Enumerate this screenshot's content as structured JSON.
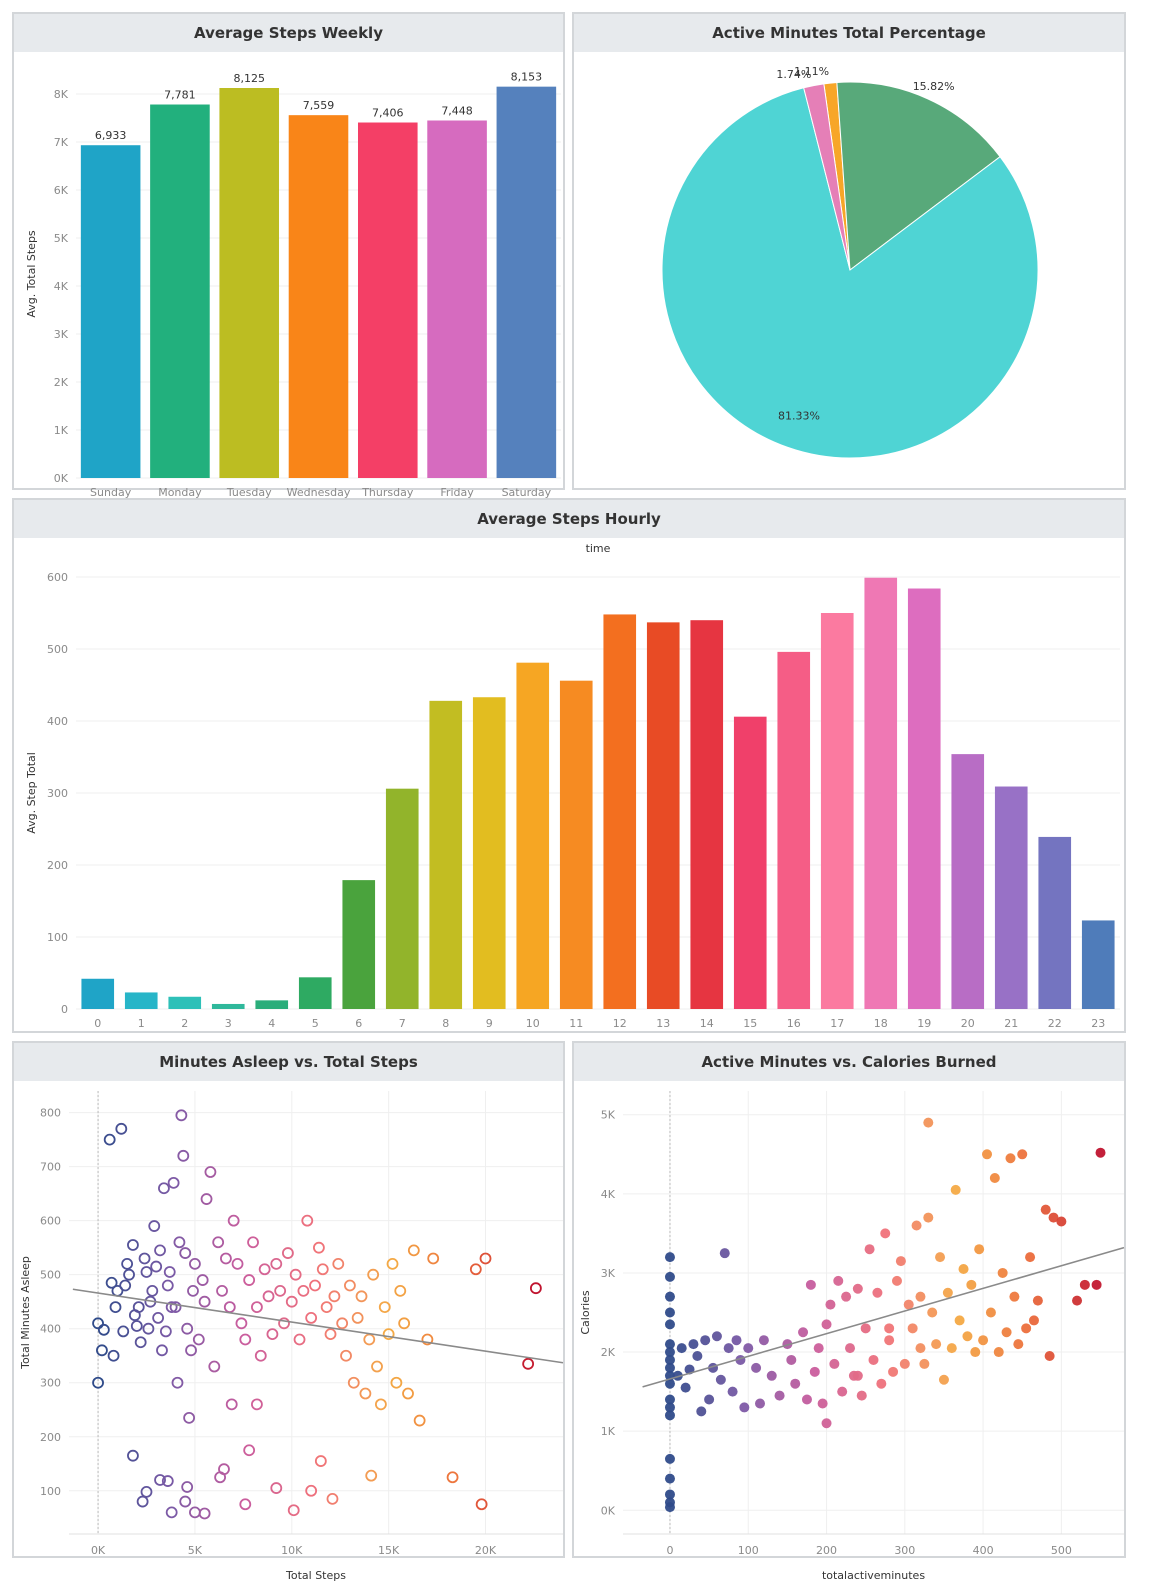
{
  "panels": {
    "weekly_title": "Average Steps Weekly",
    "pie_title": "Active Minutes Total Percentage",
    "hourly_title": "Average Steps Hourly",
    "sleep_title": "Minutes Asleep vs. Total Steps",
    "calories_title": "Active Minutes vs. Calories Burned"
  },
  "chart_data": [
    {
      "id": "weekly",
      "type": "bar",
      "title": "Average Steps Weekly",
      "xlabel": "",
      "ylabel": "Avg. Total Steps",
      "ylim": [
        0,
        8500
      ],
      "yticks": [
        0,
        1000,
        2000,
        3000,
        4000,
        5000,
        6000,
        7000,
        8000
      ],
      "ytick_labels": [
        "0K",
        "1K",
        "2K",
        "3K",
        "4K",
        "5K",
        "6K",
        "7K",
        "8K"
      ],
      "categories": [
        "Sunday",
        "Monday",
        "Tuesday",
        "Wednesday",
        "Thursday",
        "Friday",
        "Saturday"
      ],
      "values": [
        6933,
        7781,
        8125,
        7559,
        7406,
        7448,
        8153
      ],
      "value_labels": [
        "6,933",
        "7,781",
        "8,125",
        "7,559",
        "7,406",
        "7,448",
        "8,153"
      ],
      "colors": [
        "#1fa4c7",
        "#22b07d",
        "#bcbd22",
        "#f98518",
        "#f43f66",
        "#d66bbf",
        "#5581bd"
      ]
    },
    {
      "id": "pie",
      "type": "pie",
      "title": "Active Minutes Total Percentage",
      "values": [
        1.11,
        15.82,
        81.33,
        1.74
      ],
      "labels": [
        "1.11%",
        "15.82%",
        "81.33%",
        "1.74%"
      ],
      "colors": [
        "#f7a628",
        "#58a97a",
        "#4fd4d4",
        "#e57fb7"
      ]
    },
    {
      "id": "hourly",
      "type": "bar",
      "title": "Average Steps Hourly",
      "xlabel": "time",
      "ylabel": "Avg. Step Total",
      "ylim": [
        0,
        600
      ],
      "yticks": [
        0,
        100,
        200,
        300,
        400,
        500,
        600
      ],
      "categories": [
        "0",
        "1",
        "2",
        "3",
        "4",
        "5",
        "6",
        "7",
        "8",
        "9",
        "10",
        "11",
        "12",
        "13",
        "14",
        "15",
        "16",
        "17",
        "18",
        "19",
        "20",
        "21",
        "22",
        "23"
      ],
      "values": [
        42,
        23,
        17,
        7,
        12,
        44,
        179,
        306,
        428,
        433,
        481,
        456,
        548,
        537,
        540,
        406,
        496,
        550,
        599,
        584,
        354,
        309,
        239,
        123
      ],
      "colors": [
        "#1fa4c7",
        "#27b5c8",
        "#2ec0b8",
        "#2fb89b",
        "#2aad7a",
        "#2eaa62",
        "#4aa33d",
        "#92b42b",
        "#c2bd22",
        "#e2bd20",
        "#f6a623",
        "#f68b22",
        "#f36f1f",
        "#e84b25",
        "#e63541",
        "#f0406a",
        "#f55d86",
        "#fb7aa0",
        "#ef78b4",
        "#dd6dbf",
        "#b86dc5",
        "#9871c6",
        "#7474c0",
        "#4f7cba"
      ]
    },
    {
      "id": "sleep",
      "type": "scatter",
      "title": "Minutes Asleep vs. Total Steps",
      "xlabel": "Total Steps",
      "ylabel": "Total Minutes Asleep",
      "xlim": [
        -1500,
        24000
      ],
      "ylim": [
        20,
        840
      ],
      "xticks": [
        0,
        5000,
        10000,
        15000,
        20000
      ],
      "xtick_labels": [
        "0K",
        "5K",
        "10K",
        "15K",
        "20K"
      ],
      "yticks": [
        100,
        200,
        300,
        400,
        500,
        600,
        700,
        800
      ],
      "marker": "hollow",
      "trend": [
        [
          -1300,
          473
        ],
        [
          24000,
          337
        ]
      ],
      "points": [
        [
          0,
          300
        ],
        [
          0,
          410
        ],
        [
          200,
          360
        ],
        [
          300,
          398
        ],
        [
          600,
          750
        ],
        [
          700,
          485
        ],
        [
          800,
          350
        ],
        [
          900,
          440
        ],
        [
          1000,
          470
        ],
        [
          1200,
          770
        ],
        [
          1300,
          395
        ],
        [
          1400,
          480
        ],
        [
          1500,
          520
        ],
        [
          1600,
          500
        ],
        [
          1800,
          555
        ],
        [
          1900,
          425
        ],
        [
          2000,
          405
        ],
        [
          2100,
          440
        ],
        [
          2200,
          375
        ],
        [
          2400,
          530
        ],
        [
          2500,
          505
        ],
        [
          2600,
          400
        ],
        [
          2700,
          450
        ],
        [
          2800,
          470
        ],
        [
          2900,
          590
        ],
        [
          3000,
          515
        ],
        [
          3100,
          420
        ],
        [
          3200,
          545
        ],
        [
          3300,
          360
        ],
        [
          3400,
          660
        ],
        [
          3500,
          395
        ],
        [
          3600,
          480
        ],
        [
          3700,
          505
        ],
        [
          3800,
          440
        ],
        [
          3900,
          670
        ],
        [
          4000,
          440
        ],
        [
          4100,
          300
        ],
        [
          4200,
          560
        ],
        [
          4300,
          795
        ],
        [
          4400,
          720
        ],
        [
          4500,
          540
        ],
        [
          4600,
          400
        ],
        [
          4700,
          235
        ],
        [
          4800,
          360
        ],
        [
          4900,
          470
        ],
        [
          5000,
          520
        ],
        [
          5200,
          380
        ],
        [
          5400,
          490
        ],
        [
          5500,
          450
        ],
        [
          5600,
          640
        ],
        [
          5800,
          690
        ],
        [
          6000,
          330
        ],
        [
          6200,
          560
        ],
        [
          6400,
          470
        ],
        [
          6600,
          530
        ],
        [
          6800,
          440
        ],
        [
          7000,
          600
        ],
        [
          7200,
          520
        ],
        [
          7400,
          410
        ],
        [
          7600,
          380
        ],
        [
          7800,
          490
        ],
        [
          8000,
          560
        ],
        [
          8200,
          440
        ],
        [
          8400,
          350
        ],
        [
          8600,
          510
        ],
        [
          8800,
          460
        ],
        [
          9000,
          390
        ],
        [
          9200,
          520
        ],
        [
          9400,
          470
        ],
        [
          9600,
          410
        ],
        [
          9800,
          540
        ],
        [
          10000,
          450
        ],
        [
          10200,
          500
        ],
        [
          10400,
          380
        ],
        [
          10600,
          470
        ],
        [
          10800,
          600
        ],
        [
          11000,
          420
        ],
        [
          11200,
          480
        ],
        [
          11400,
          550
        ],
        [
          11600,
          510
        ],
        [
          11800,
          440
        ],
        [
          12000,
          390
        ],
        [
          12200,
          460
        ],
        [
          12400,
          520
        ],
        [
          12600,
          410
        ],
        [
          12800,
          350
        ],
        [
          13000,
          480
        ],
        [
          13200,
          300
        ],
        [
          13400,
          420
        ],
        [
          13600,
          460
        ],
        [
          13800,
          280
        ],
        [
          14000,
          380
        ],
        [
          14200,
          500
        ],
        [
          14400,
          330
        ],
        [
          14600,
          260
        ],
        [
          14800,
          440
        ],
        [
          15000,
          390
        ],
        [
          15200,
          520
        ],
        [
          15400,
          300
        ],
        [
          15600,
          470
        ],
        [
          15800,
          410
        ],
        [
          16000,
          280
        ],
        [
          16300,
          545
        ],
        [
          16600,
          230
        ],
        [
          17000,
          380
        ],
        [
          17300,
          530
        ],
        [
          18300,
          125
        ],
        [
          19500,
          510
        ],
        [
          19800,
          75
        ],
        [
          20000,
          530
        ],
        [
          22200,
          335
        ],
        [
          22600,
          475
        ],
        [
          1800,
          165
        ],
        [
          2300,
          80
        ],
        [
          2500,
          98
        ],
        [
          3200,
          120
        ],
        [
          3600,
          118
        ],
        [
          3800,
          60
        ],
        [
          4500,
          80
        ],
        [
          4600,
          107
        ],
        [
          5000,
          60
        ],
        [
          5500,
          58
        ],
        [
          6300,
          125
        ],
        [
          6500,
          140
        ],
        [
          7600,
          75
        ],
        [
          7800,
          175
        ],
        [
          9200,
          105
        ],
        [
          10100,
          64
        ],
        [
          11000,
          100
        ],
        [
          12100,
          85
        ],
        [
          14100,
          128
        ],
        [
          11500,
          155
        ],
        [
          6900,
          260
        ],
        [
          8200,
          260
        ]
      ]
    },
    {
      "id": "calories",
      "type": "scatter",
      "title": "Active Minutes vs. Calories Burned",
      "xlabel": "totalactiveminutes",
      "ylabel": "Calories",
      "xlim": [
        -60,
        580
      ],
      "ylim": [
        -300,
        5300
      ],
      "xticks": [
        0,
        100,
        200,
        300,
        400,
        500
      ],
      "yticks": [
        0,
        1000,
        2000,
        3000,
        4000,
        5000
      ],
      "ytick_labels": [
        "0K",
        "1K",
        "2K",
        "3K",
        "4K",
        "5K"
      ],
      "marker": "filled",
      "trend": [
        [
          -35,
          1560
        ],
        [
          580,
          3320
        ]
      ],
      "points": [
        [
          0,
          3200
        ],
        [
          0,
          2950
        ],
        [
          0,
          2700
        ],
        [
          0,
          2500
        ],
        [
          0,
          2350
        ],
        [
          0,
          2100
        ],
        [
          0,
          2000
        ],
        [
          0,
          1900
        ],
        [
          0,
          1800
        ],
        [
          0,
          1700
        ],
        [
          0,
          1600
        ],
        [
          0,
          1400
        ],
        [
          0,
          1300
        ],
        [
          0,
          1200
        ],
        [
          0,
          650
        ],
        [
          0,
          400
        ],
        [
          0,
          200
        ],
        [
          0,
          100
        ],
        [
          0,
          40
        ],
        [
          10,
          1700
        ],
        [
          15,
          2050
        ],
        [
          20,
          1550
        ],
        [
          25,
          1780
        ],
        [
          30,
          2100
        ],
        [
          35,
          1950
        ],
        [
          40,
          1250
        ],
        [
          45,
          2150
        ],
        [
          50,
          1400
        ],
        [
          55,
          1800
        ],
        [
          60,
          2200
        ],
        [
          65,
          1650
        ],
        [
          70,
          3250
        ],
        [
          75,
          2050
        ],
        [
          80,
          1500
        ],
        [
          85,
          2150
        ],
        [
          90,
          1900
        ],
        [
          95,
          1300
        ],
        [
          100,
          2050
        ],
        [
          110,
          1800
        ],
        [
          115,
          1350
        ],
        [
          120,
          2150
        ],
        [
          130,
          1700
        ],
        [
          140,
          1450
        ],
        [
          150,
          2100
        ],
        [
          155,
          1900
        ],
        [
          160,
          1600
        ],
        [
          170,
          2250
        ],
        [
          175,
          1400
        ],
        [
          180,
          2850
        ],
        [
          185,
          1750
        ],
        [
          190,
          2050
        ],
        [
          195,
          1350
        ],
        [
          200,
          2350
        ],
        [
          205,
          2600
        ],
        [
          210,
          1850
        ],
        [
          215,
          2900
        ],
        [
          220,
          1500
        ],
        [
          225,
          2700
        ],
        [
          230,
          2050
        ],
        [
          235,
          1700
        ],
        [
          240,
          2800
        ],
        [
          245,
          1450
        ],
        [
          250,
          2300
        ],
        [
          255,
          3300
        ],
        [
          260,
          1900
        ],
        [
          265,
          2750
        ],
        [
          270,
          1600
        ],
        [
          275,
          3500
        ],
        [
          280,
          2150
        ],
        [
          285,
          1750
        ],
        [
          290,
          2900
        ],
        [
          295,
          3150
        ],
        [
          300,
          1850
        ],
        [
          305,
          2600
        ],
        [
          310,
          2300
        ],
        [
          315,
          3600
        ],
        [
          320,
          2050
        ],
        [
          325,
          1850
        ],
        [
          330,
          3700
        ],
        [
          335,
          2500
        ],
        [
          340,
          2100
        ],
        [
          345,
          3200
        ],
        [
          350,
          1650
        ],
        [
          355,
          2750
        ],
        [
          360,
          2050
        ],
        [
          365,
          4050
        ],
        [
          370,
          2400
        ],
        [
          375,
          3050
        ],
        [
          380,
          2200
        ],
        [
          385,
          2850
        ],
        [
          390,
          2000
        ],
        [
          395,
          3300
        ],
        [
          400,
          2150
        ],
        [
          405,
          4500
        ],
        [
          410,
          2500
        ],
        [
          415,
          4200
        ],
        [
          420,
          2000
        ],
        [
          425,
          3000
        ],
        [
          430,
          2250
        ],
        [
          435,
          4450
        ],
        [
          440,
          2700
        ],
        [
          445,
          2100
        ],
        [
          450,
          4500
        ],
        [
          455,
          2300
        ],
        [
          460,
          3200
        ],
        [
          465,
          2400
        ],
        [
          470,
          2650
        ],
        [
          480,
          3800
        ],
        [
          485,
          1950
        ],
        [
          490,
          3700
        ],
        [
          500,
          3650
        ],
        [
          520,
          2650
        ],
        [
          530,
          2850
        ],
        [
          545,
          2850
        ],
        [
          550,
          4520
        ],
        [
          330,
          4900
        ],
        [
          200,
          1100
        ],
        [
          240,
          1700
        ],
        [
          280,
          2300
        ],
        [
          320,
          2700
        ]
      ]
    }
  ]
}
